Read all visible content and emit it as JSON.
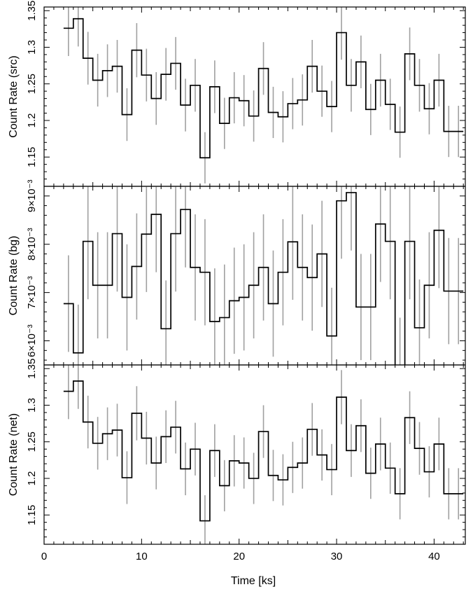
{
  "figure": {
    "xlabel": "Time [ks]",
    "x_ticks": [
      0,
      10,
      20,
      30,
      40
    ],
    "x_tick_labels": [
      "0",
      "10",
      "20",
      "30",
      "40"
    ],
    "xlim": [
      0,
      43.2
    ],
    "colors": {
      "step": "#000000",
      "error_bar": "#a0a0a0",
      "axes": "#000000"
    }
  },
  "chart_data": [
    {
      "type": "line",
      "panel": "src",
      "ylabel": "Count Rate (src)",
      "ylim": [
        1.11,
        1.355
      ],
      "y_ticks": [
        1.15,
        1.2,
        1.25,
        1.3,
        1.35
      ],
      "y_tick_labels": [
        "1.15",
        "1.2",
        "1.25",
        "1.3",
        "1.35"
      ],
      "bin_width": 1.0,
      "x": [
        2.5,
        3.5,
        4.5,
        5.5,
        6.5,
        7.5,
        8.5,
        9.5,
        10.5,
        11.5,
        12.5,
        13.5,
        14.5,
        15.5,
        16.5,
        17.5,
        18.5,
        19.5,
        20.5,
        21.5,
        22.5,
        23.5,
        24.5,
        25.5,
        26.5,
        27.5,
        28.5,
        29.5,
        30.5,
        31.5,
        32.5,
        33.5,
        34.5,
        35.5,
        36.5,
        37.5,
        38.5,
        39.5,
        40.5,
        41.5,
        42.5
      ],
      "values": [
        1.326,
        1.339,
        1.285,
        1.255,
        1.268,
        1.274,
        1.208,
        1.296,
        1.262,
        1.23,
        1.263,
        1.278,
        1.221,
        1.248,
        1.149,
        1.246,
        1.196,
        1.231,
        1.227,
        1.206,
        1.271,
        1.211,
        1.205,
        1.223,
        1.228,
        1.274,
        1.24,
        1.219,
        1.32,
        1.248,
        1.28,
        1.215,
        1.255,
        1.222,
        1.184,
        1.291,
        1.248,
        1.216,
        1.255,
        1.185,
        1.185
      ],
      "errors": [
        0.038,
        0.038,
        0.036,
        0.036,
        0.036,
        0.036,
        0.036,
        0.037,
        0.036,
        0.036,
        0.036,
        0.036,
        0.036,
        0.036,
        0.035,
        0.036,
        0.035,
        0.035,
        0.035,
        0.035,
        0.036,
        0.035,
        0.035,
        0.035,
        0.035,
        0.036,
        0.035,
        0.035,
        0.037,
        0.036,
        0.036,
        0.035,
        0.036,
        0.035,
        0.035,
        0.036,
        0.036,
        0.035,
        0.036,
        0.035,
        0.035
      ]
    },
    {
      "type": "line",
      "panel": "bg",
      "ylabel": "Count Rate (bg)",
      "ylim": [
        0.0055,
        0.0092
      ],
      "y_ticks": [
        0.006,
        0.007,
        0.008,
        0.009
      ],
      "y_tick_labels": [
        "6×10⁻³",
        "7×10⁻³",
        "8×10⁻³",
        "9×10⁻³"
      ],
      "bin_width": 1.0,
      "x": [
        2.5,
        3.5,
        4.5,
        5.5,
        6.5,
        7.5,
        8.5,
        9.5,
        10.5,
        11.5,
        12.5,
        13.5,
        14.5,
        15.5,
        16.5,
        17.5,
        18.5,
        19.5,
        20.5,
        21.5,
        22.5,
        23.5,
        24.5,
        25.5,
        26.5,
        27.5,
        28.5,
        29.5,
        30.5,
        31.5,
        32.5,
        33.5,
        34.5,
        35.5,
        36.5,
        37.5,
        38.5,
        39.5,
        40.5,
        41.5,
        42.5
      ],
      "values": [
        0.00677,
        0.00575,
        0.00806,
        0.00715,
        0.00715,
        0.00822,
        0.0069,
        0.00754,
        0.00821,
        0.00862,
        0.00625,
        0.00822,
        0.00872,
        0.00752,
        0.00742,
        0.0064,
        0.00648,
        0.00683,
        0.0069,
        0.00715,
        0.00752,
        0.00677,
        0.00742,
        0.00805,
        0.00752,
        0.00731,
        0.0078,
        0.0061,
        0.0089,
        0.00907,
        0.0067,
        0.0067,
        0.00842,
        0.00806,
        0.00548,
        0.00806,
        0.00627,
        0.00715,
        0.00829,
        0.00703,
        0.00703
      ],
      "errors": [
        0.001,
        0.001,
        0.0012,
        0.0011,
        0.0011,
        0.0012,
        0.0011,
        0.0011,
        0.0012,
        0.0012,
        0.001,
        0.0012,
        0.0012,
        0.0011,
        0.0011,
        0.0011,
        0.0011,
        0.0011,
        0.0011,
        0.0011,
        0.0011,
        0.0011,
        0.0011,
        0.0012,
        0.0011,
        0.0011,
        0.0011,
        0.001,
        0.0012,
        0.0012,
        0.0011,
        0.0011,
        0.0012,
        0.0012,
        0.001,
        0.0012,
        0.001,
        0.0011,
        0.0012,
        0.0011,
        0.0011
      ]
    },
    {
      "type": "line",
      "panel": "net",
      "ylabel": "Count Rate (net)",
      "ylim": [
        1.11,
        1.355
      ],
      "y_ticks": [
        1.15,
        1.2,
        1.25,
        1.3,
        1.35
      ],
      "y_tick_labels": [
        "1.15",
        "1.2",
        "1.25",
        "1.3",
        "1.35"
      ],
      "bin_width": 1.0,
      "x": [
        2.5,
        3.5,
        4.5,
        5.5,
        6.5,
        7.5,
        8.5,
        9.5,
        10.5,
        11.5,
        12.5,
        13.5,
        14.5,
        15.5,
        16.5,
        17.5,
        18.5,
        19.5,
        20.5,
        21.5,
        22.5,
        23.5,
        24.5,
        25.5,
        26.5,
        27.5,
        28.5,
        29.5,
        30.5,
        31.5,
        32.5,
        33.5,
        34.5,
        35.5,
        36.5,
        37.5,
        38.5,
        39.5,
        40.5,
        41.5,
        42.5
      ],
      "values": [
        1.319,
        1.333,
        1.277,
        1.248,
        1.261,
        1.266,
        1.201,
        1.289,
        1.255,
        1.221,
        1.257,
        1.27,
        1.213,
        1.24,
        1.142,
        1.238,
        1.19,
        1.224,
        1.221,
        1.2,
        1.264,
        1.204,
        1.198,
        1.215,
        1.221,
        1.267,
        1.232,
        1.212,
        1.311,
        1.238,
        1.272,
        1.207,
        1.247,
        1.214,
        1.179,
        1.283,
        1.241,
        1.209,
        1.247,
        1.179,
        1.179
      ],
      "errors": [
        0.038,
        0.038,
        0.036,
        0.036,
        0.036,
        0.036,
        0.036,
        0.037,
        0.036,
        0.036,
        0.036,
        0.036,
        0.036,
        0.036,
        0.035,
        0.036,
        0.035,
        0.035,
        0.035,
        0.035,
        0.036,
        0.035,
        0.035,
        0.035,
        0.035,
        0.036,
        0.035,
        0.035,
        0.037,
        0.036,
        0.036,
        0.035,
        0.036,
        0.035,
        0.035,
        0.036,
        0.036,
        0.035,
        0.036,
        0.035,
        0.035
      ]
    }
  ]
}
